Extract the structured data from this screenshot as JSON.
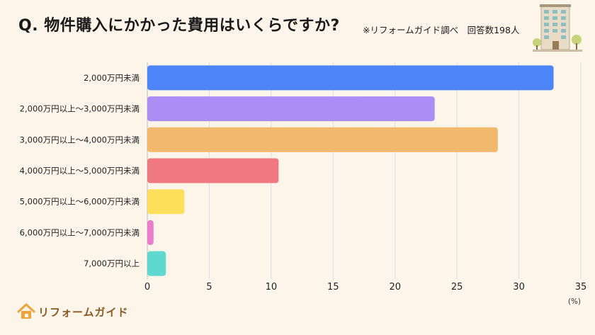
{
  "header": {
    "title": "Q.  物件購入にかかった費用はいくらですか?",
    "note": "※リフォームガイド調べ　回答数198人"
  },
  "logo": {
    "text": "リフォームガイド"
  },
  "colors": {
    "bars": [
      "#4d84f8",
      "#ac8cf5",
      "#f2b86c",
      "#f07880",
      "#ffdf5c",
      "#ec7ccc",
      "#5fd8d0"
    ],
    "grid": "#dcdcdc",
    "logo": "#f2a23a"
  },
  "chart_data": {
    "type": "bar",
    "orientation": "horizontal",
    "categories": [
      "2,000万円未満",
      "2,000万円以上〜3,000万円未満",
      "3,000万円以上〜4,000万円未満",
      "4,000万円以上〜5,000万円未満",
      "5,000万円以上〜6,000万円未満",
      "6,000万円以上〜7,000万円未満",
      "7,000万円以上"
    ],
    "values": [
      32.8,
      23.2,
      28.3,
      10.6,
      3.0,
      0.5,
      1.5
    ],
    "xlim": [
      0,
      35
    ],
    "xticks": [
      0,
      5,
      10,
      15,
      20,
      25,
      30,
      35
    ],
    "xunit": "(%)",
    "grid": true
  }
}
